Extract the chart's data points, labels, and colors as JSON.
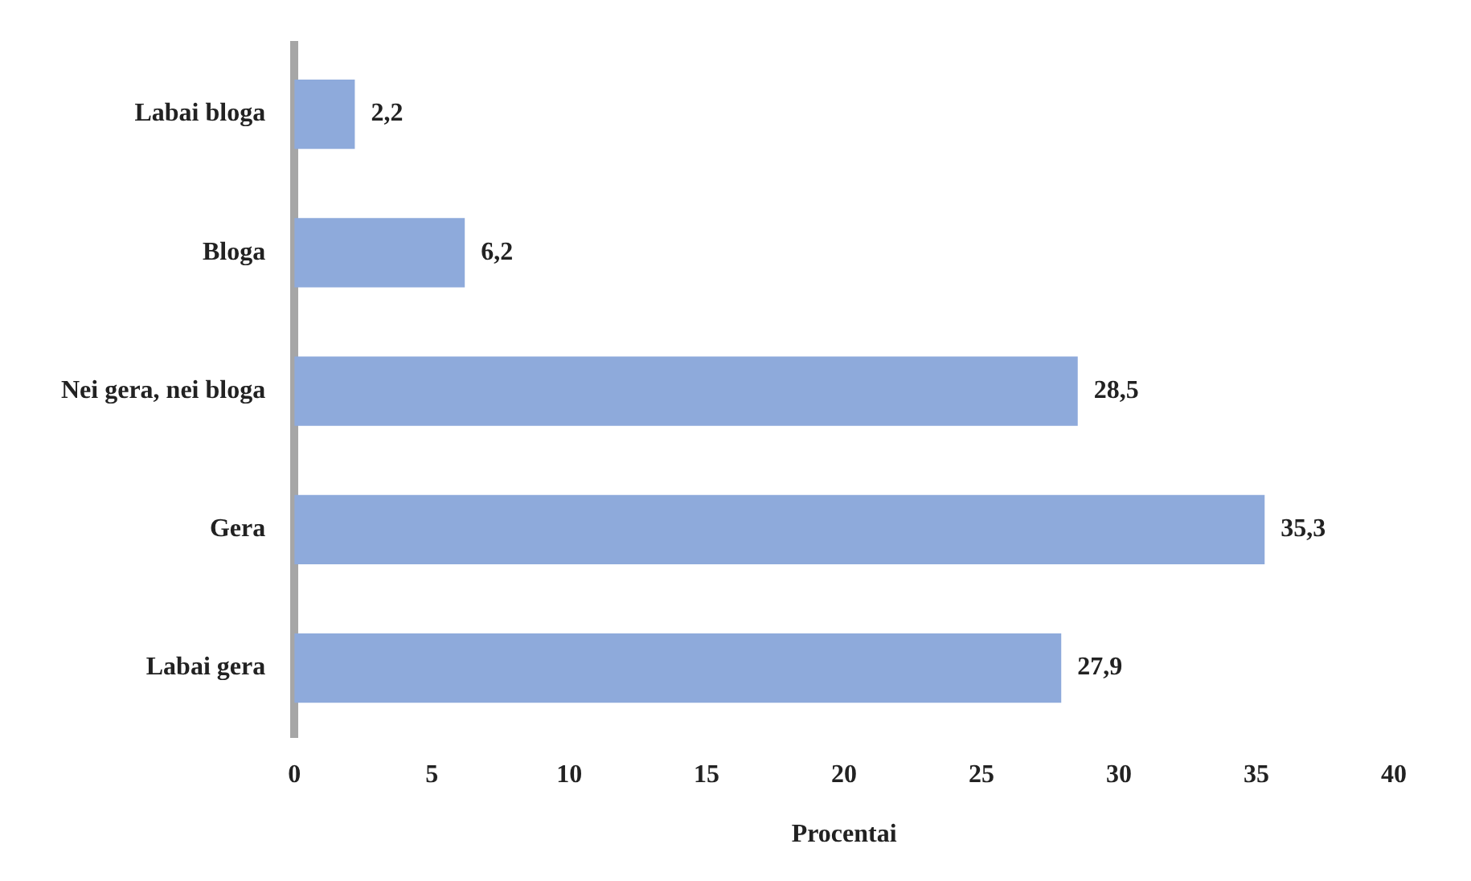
{
  "chart_data": {
    "type": "bar",
    "orientation": "horizontal",
    "xlabel": "Procentai",
    "categories": [
      "Labai bloga",
      "Bloga",
      "Nei gera, nei bloga",
      "Gera",
      "Labai gera"
    ],
    "values": [
      2.2,
      6.2,
      28.5,
      35.3,
      27.9
    ],
    "value_labels": [
      "2,2",
      "6,2",
      "28,5",
      "35,3",
      "27,9"
    ],
    "color": "#8eaadb",
    "xlim": [
      0,
      40
    ],
    "xticks": [
      0,
      5,
      10,
      15,
      20,
      25,
      30,
      35,
      40
    ],
    "grid": false,
    "legend": false
  }
}
